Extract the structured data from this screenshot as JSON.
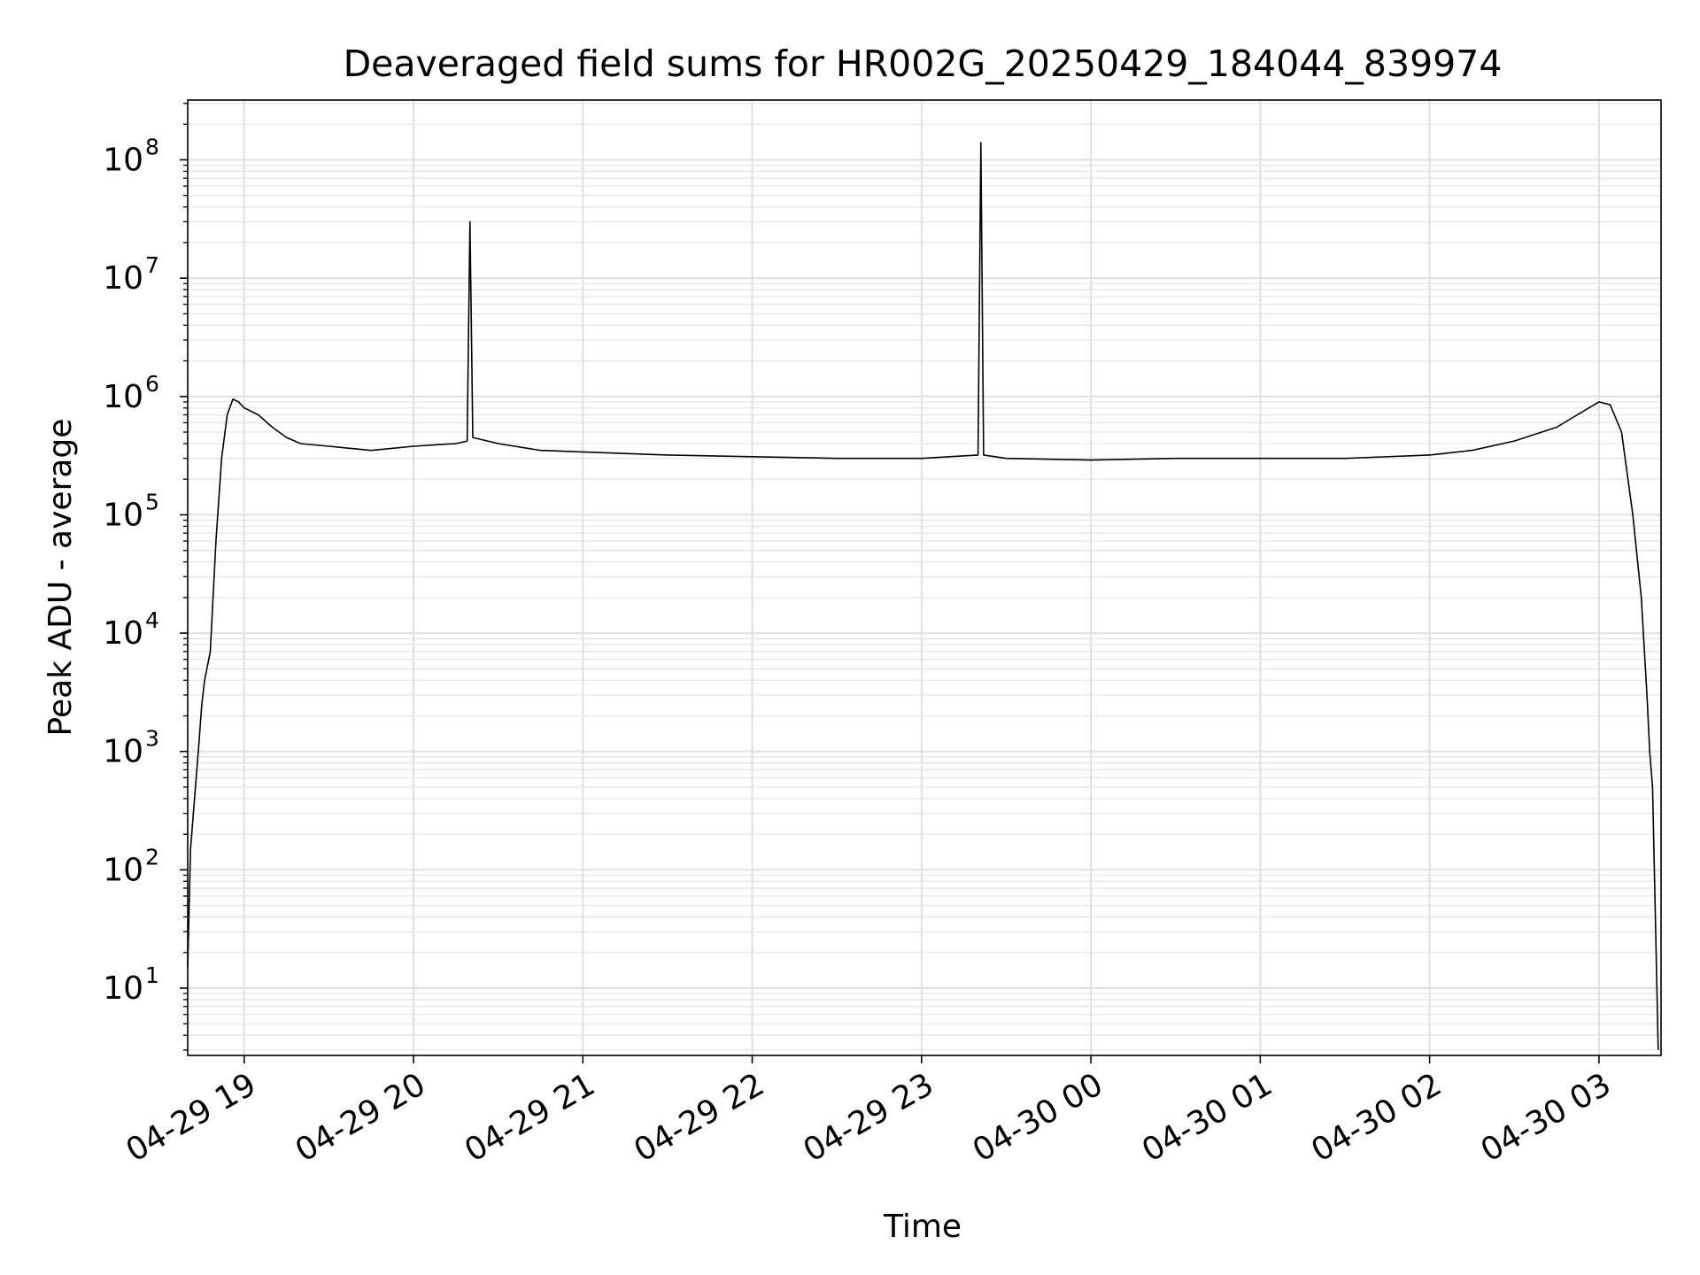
{
  "chart_data": {
    "type": "line",
    "title": "Deaveraged field sums for HR002G_20250429_184044_839974",
    "xlabel": "Time",
    "ylabel": "Peak ADU - average",
    "y_scale": "log",
    "grid": true,
    "grid_minor": true,
    "legend": "none",
    "xlim": [
      "2025-04-29 18:40",
      "2025-04-30 03:22"
    ],
    "ylim": [
      2.7,
      320000000.0
    ],
    "x_ticks": [
      "2025-04-29 19:00",
      "2025-04-29 20:00",
      "2025-04-29 21:00",
      "2025-04-29 22:00",
      "2025-04-29 23:00",
      "2025-04-30 00:00",
      "2025-04-30 01:00",
      "2025-04-30 02:00",
      "2025-04-30 03:00"
    ],
    "x_tick_labels": [
      "04-29 19",
      "04-29 20",
      "04-29 21",
      "04-29 22",
      "04-29 23",
      "04-30 00",
      "04-30 01",
      "04-30 02",
      "04-30 03"
    ],
    "y_ticks": [
      10,
      100,
      1000,
      10000,
      100000,
      1000000,
      10000000,
      100000000
    ],
    "y_tick_labels": [
      {
        "base": "10",
        "exp": "1"
      },
      {
        "base": "10",
        "exp": "2"
      },
      {
        "base": "10",
        "exp": "3"
      },
      {
        "base": "10",
        "exp": "4"
      },
      {
        "base": "10",
        "exp": "5"
      },
      {
        "base": "10",
        "exp": "6"
      },
      {
        "base": "10",
        "exp": "7"
      },
      {
        "base": "10",
        "exp": "8"
      }
    ],
    "series": [
      {
        "color": "#000000",
        "x": [
          "2025-04-29 18:40",
          "2025-04-29 18:41",
          "2025-04-29 18:42",
          "2025-04-29 18:43",
          "2025-04-29 18:44",
          "2025-04-29 18:45",
          "2025-04-29 18:46",
          "2025-04-29 18:48",
          "2025-04-29 18:50",
          "2025-04-29 18:52",
          "2025-04-29 18:54",
          "2025-04-29 18:56",
          "2025-04-29 18:58",
          "2025-04-29 19:00",
          "2025-04-29 19:05",
          "2025-04-29 19:10",
          "2025-04-29 19:15",
          "2025-04-29 19:20",
          "2025-04-29 19:30",
          "2025-04-29 19:45",
          "2025-04-29 20:00",
          "2025-04-29 20:15",
          "2025-04-29 20:19",
          "2025-04-29 20:20",
          "2025-04-29 20:21",
          "2025-04-29 20:30",
          "2025-04-29 20:45",
          "2025-04-29 21:00",
          "2025-04-29 21:30",
          "2025-04-29 22:00",
          "2025-04-29 22:30",
          "2025-04-29 23:00",
          "2025-04-29 23:20",
          "2025-04-29 23:21",
          "2025-04-29 23:22",
          "2025-04-29 23:30",
          "2025-04-30 00:00",
          "2025-04-30 00:30",
          "2025-04-30 01:00",
          "2025-04-30 01:30",
          "2025-04-30 02:00",
          "2025-04-30 02:15",
          "2025-04-30 02:30",
          "2025-04-30 02:45",
          "2025-04-30 03:00",
          "2025-04-30 03:04",
          "2025-04-30 03:08",
          "2025-04-30 03:12",
          "2025-04-30 03:15",
          "2025-04-30 03:17",
          "2025-04-30 03:18",
          "2025-04-30 03:19",
          "2025-04-30 03:20",
          "2025-04-30 03:21"
        ],
        "values": [
          15,
          150,
          300,
          600,
          1200,
          2500,
          4000,
          7000,
          60000,
          300000,
          700000,
          950000,
          900000,
          800000,
          700000,
          550000,
          450000,
          400000,
          380000,
          350000,
          380000,
          400000,
          420000,
          30000000,
          450000,
          400000,
          350000,
          340000,
          320000,
          310000,
          300000,
          300000,
          320000,
          140000000,
          320000,
          300000,
          290000,
          300000,
          300000,
          300000,
          320000,
          350000,
          420000,
          550000,
          900000,
          850000,
          500000,
          100000,
          20000,
          3000,
          1000,
          500,
          40,
          3
        ]
      }
    ],
    "annotations": []
  }
}
